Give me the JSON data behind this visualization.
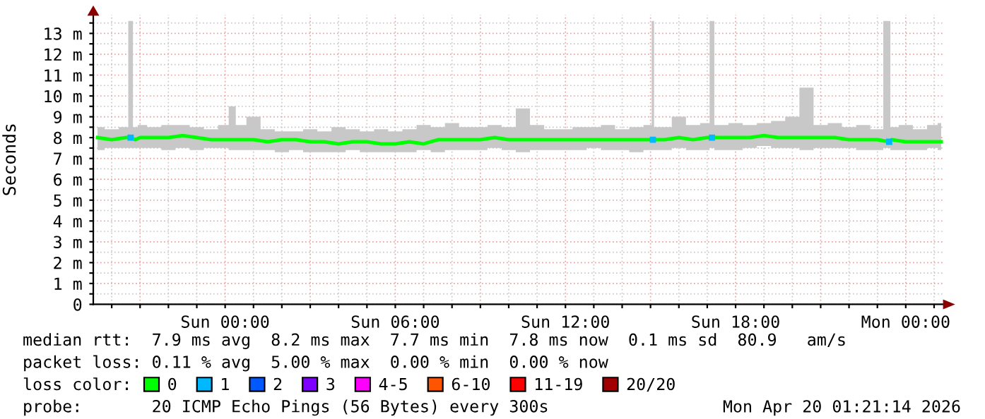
{
  "chart_data": {
    "type": "line",
    "ylabel": "Seconds",
    "legend_title": "loss color:",
    "legend": "bottom",
    "grid": true,
    "xlim": [
      "2026-04-18T19:21",
      "2026-04-20T01:21"
    ],
    "xticks": [
      {
        "value": "2026-04-18T20:00",
        "label": null
      },
      {
        "value": "2026-04-18T21:00",
        "label": null
      },
      {
        "value": "2026-04-18T22:00",
        "label": null
      },
      {
        "value": "2026-04-18T23:00",
        "label": null
      },
      {
        "value": "2026-04-19T00:00",
        "label": "Sun 00:00"
      },
      {
        "value": "2026-04-19T01:00",
        "label": null
      },
      {
        "value": "2026-04-19T02:00",
        "label": null
      },
      {
        "value": "2026-04-19T03:00",
        "label": null
      },
      {
        "value": "2026-04-19T04:00",
        "label": null
      },
      {
        "value": "2026-04-19T05:00",
        "label": null
      },
      {
        "value": "2026-04-19T06:00",
        "label": "Sun 06:00"
      },
      {
        "value": "2026-04-19T07:00",
        "label": null
      },
      {
        "value": "2026-04-19T08:00",
        "label": null
      },
      {
        "value": "2026-04-19T09:00",
        "label": null
      },
      {
        "value": "2026-04-19T10:00",
        "label": null
      },
      {
        "value": "2026-04-19T11:00",
        "label": null
      },
      {
        "value": "2026-04-19T12:00",
        "label": "Sun 12:00"
      },
      {
        "value": "2026-04-19T13:00",
        "label": null
      },
      {
        "value": "2026-04-19T14:00",
        "label": null
      },
      {
        "value": "2026-04-19T15:00",
        "label": null
      },
      {
        "value": "2026-04-19T16:00",
        "label": null
      },
      {
        "value": "2026-04-19T17:00",
        "label": null
      },
      {
        "value": "2026-04-19T18:00",
        "label": "Sun 18:00"
      },
      {
        "value": "2026-04-19T19:00",
        "label": null
      },
      {
        "value": "2026-04-19T20:00",
        "label": null
      },
      {
        "value": "2026-04-19T21:00",
        "label": null
      },
      {
        "value": "2026-04-19T22:00",
        "label": null
      },
      {
        "value": "2026-04-19T23:00",
        "label": null
      },
      {
        "value": "2026-04-20T00:00",
        "label": "Mon 00:00"
      },
      {
        "value": "2026-04-20T01:00",
        "label": null
      }
    ],
    "ylim": [
      0,
      13.9
    ],
    "yticks": [
      {
        "value": 0,
        "label": "0"
      },
      {
        "value": 0.5,
        "label": null
      },
      {
        "value": 1,
        "label": "1 m"
      },
      {
        "value": 1.5,
        "label": null
      },
      {
        "value": 2,
        "label": "2 m"
      },
      {
        "value": 2.5,
        "label": null
      },
      {
        "value": 3,
        "label": "3 m"
      },
      {
        "value": 3.5,
        "label": null
      },
      {
        "value": 4,
        "label": "4 m"
      },
      {
        "value": 4.5,
        "label": null
      },
      {
        "value": 5,
        "label": "5 m"
      },
      {
        "value": 5.5,
        "label": null
      },
      {
        "value": 6,
        "label": "6 m"
      },
      {
        "value": 6.5,
        "label": null
      },
      {
        "value": 7,
        "label": "7 m"
      },
      {
        "value": 7.5,
        "label": null
      },
      {
        "value": 8,
        "label": "8 m"
      },
      {
        "value": 8.5,
        "label": null
      },
      {
        "value": 9,
        "label": "9 m"
      },
      {
        "value": 9.5,
        "label": null
      },
      {
        "value": 10,
        "label": "10 m"
      },
      {
        "value": 10.5,
        "label": null
      },
      {
        "value": 11,
        "label": "11 m"
      },
      {
        "value": 11.5,
        "label": null
      },
      {
        "value": 12,
        "label": "12 m"
      },
      {
        "value": 12.5,
        "label": null
      },
      {
        "value": 13,
        "label": "13 m"
      },
      {
        "value": 13.5,
        "label": null
      }
    ],
    "x": [
      "2026-04-18T19:30",
      "2026-04-18T20:00",
      "2026-04-18T20:30",
      "2026-04-18T20:40",
      "2026-04-18T20:50",
      "2026-04-18T21:00",
      "2026-04-18T21:30",
      "2026-04-18T22:00",
      "2026-04-18T22:30",
      "2026-04-18T23:00",
      "2026-04-18T23:30",
      "2026-04-19T00:00",
      "2026-04-19T00:15",
      "2026-04-19T00:30",
      "2026-04-19T01:00",
      "2026-04-19T01:30",
      "2026-04-19T02:00",
      "2026-04-19T02:30",
      "2026-04-19T03:00",
      "2026-04-19T03:30",
      "2026-04-19T04:00",
      "2026-04-19T04:30",
      "2026-04-19T05:00",
      "2026-04-19T05:30",
      "2026-04-19T06:00",
      "2026-04-19T06:30",
      "2026-04-19T07:00",
      "2026-04-19T07:30",
      "2026-04-19T08:00",
      "2026-04-19T08:30",
      "2026-04-19T09:00",
      "2026-04-19T09:30",
      "2026-04-19T10:00",
      "2026-04-19T10:30",
      "2026-04-19T11:00",
      "2026-04-19T11:30",
      "2026-04-19T12:00",
      "2026-04-19T12:30",
      "2026-04-19T13:00",
      "2026-04-19T13:30",
      "2026-04-19T14:00",
      "2026-04-19T14:30",
      "2026-04-19T15:00",
      "2026-04-19T15:05",
      "2026-04-19T15:10",
      "2026-04-19T15:30",
      "2026-04-19T16:00",
      "2026-04-19T16:30",
      "2026-04-19T17:00",
      "2026-04-19T17:10",
      "2026-04-19T17:20",
      "2026-04-19T17:30",
      "2026-04-19T18:00",
      "2026-04-19T18:30",
      "2026-04-19T19:00",
      "2026-04-19T19:30",
      "2026-04-19T20:00",
      "2026-04-19T20:30",
      "2026-04-19T21:00",
      "2026-04-19T21:30",
      "2026-04-19T22:00",
      "2026-04-19T22:30",
      "2026-04-19T23:00",
      "2026-04-19T23:25",
      "2026-04-19T23:30",
      "2026-04-20T00:00",
      "2026-04-20T00:30",
      "2026-04-20T01:00",
      "2026-04-20T01:15"
    ],
    "series": [
      {
        "name": "0",
        "color": "#00ff00",
        "values": [
          8.0,
          7.9,
          8.0,
          8.0,
          7.9,
          8.0,
          8.0,
          8.0,
          8.1,
          8.0,
          7.9,
          7.9,
          7.9,
          7.9,
          7.9,
          7.8,
          7.9,
          7.9,
          7.8,
          7.8,
          7.7,
          7.8,
          7.8,
          7.7,
          7.7,
          7.8,
          7.7,
          7.9,
          7.9,
          7.9,
          7.9,
          8.0,
          7.9,
          7.9,
          7.9,
          7.9,
          7.9,
          7.9,
          7.9,
          7.9,
          7.9,
          7.9,
          7.9,
          7.9,
          7.9,
          7.9,
          8.0,
          7.9,
          8.0,
          8.0,
          8.0,
          8.0,
          8.0,
          8.0,
          8.1,
          8.0,
          8.0,
          8.0,
          8.0,
          8.0,
          7.9,
          7.9,
          7.9,
          7.8,
          7.9,
          7.8,
          7.8,
          7.8,
          7.8
        ],
        "lower": [
          7.4,
          7.5,
          7.5,
          7.5,
          7.5,
          7.5,
          7.5,
          7.4,
          7.5,
          7.4,
          7.5,
          7.5,
          7.4,
          7.4,
          7.4,
          7.4,
          7.3,
          7.4,
          7.3,
          7.3,
          7.3,
          7.4,
          7.3,
          7.3,
          7.3,
          7.3,
          7.4,
          7.3,
          7.4,
          7.4,
          7.4,
          7.5,
          7.4,
          7.3,
          7.4,
          7.4,
          7.4,
          7.4,
          7.5,
          7.4,
          7.4,
          7.3,
          7.4,
          7.4,
          7.4,
          7.4,
          7.5,
          7.4,
          7.4,
          7.5,
          7.4,
          7.4,
          7.4,
          7.5,
          7.6,
          7.5,
          7.5,
          7.4,
          7.5,
          7.5,
          7.5,
          7.4,
          7.4,
          7.5,
          7.4,
          7.4,
          7.4,
          7.5,
          7.4
        ],
        "upper": [
          8.5,
          8.4,
          8.5,
          13.6,
          8.5,
          8.6,
          8.5,
          8.6,
          8.6,
          8.5,
          8.4,
          8.6,
          9.5,
          8.6,
          9.0,
          8.4,
          8.3,
          8.3,
          8.4,
          8.3,
          8.5,
          8.4,
          8.3,
          8.4,
          8.3,
          8.4,
          8.6,
          8.5,
          8.7,
          8.5,
          8.5,
          8.6,
          8.5,
          9.4,
          8.6,
          8.4,
          8.4,
          8.5,
          8.5,
          8.6,
          8.4,
          8.5,
          8.6,
          13.6,
          8.5,
          8.5,
          9.0,
          8.6,
          8.7,
          13.6,
          8.6,
          8.6,
          8.7,
          8.6,
          8.7,
          8.8,
          9.0,
          10.4,
          8.6,
          8.7,
          8.5,
          8.6,
          8.4,
          13.6,
          8.5,
          8.6,
          8.4,
          8.6,
          8.7
        ]
      },
      {
        "name": "1",
        "color": "#00b8ff",
        "type": "scatter",
        "marker": "square",
        "values": [
          null,
          null,
          null,
          8.0,
          null,
          null,
          null,
          null,
          null,
          null,
          null,
          null,
          null,
          null,
          null,
          null,
          null,
          null,
          null,
          null,
          null,
          null,
          null,
          null,
          null,
          null,
          null,
          null,
          null,
          null,
          null,
          null,
          null,
          null,
          null,
          null,
          null,
          null,
          null,
          null,
          null,
          null,
          null,
          7.9,
          null,
          null,
          null,
          null,
          null,
          8.0,
          null,
          null,
          null,
          null,
          null,
          null,
          null,
          null,
          null,
          null,
          null,
          null,
          null,
          7.8,
          null,
          null,
          null,
          null,
          null
        ]
      },
      {
        "name": "2",
        "color": "#0059ff",
        "values": [
          null,
          null,
          null,
          null,
          null,
          null,
          null,
          null,
          null,
          null,
          null,
          null,
          null,
          null,
          null,
          null,
          null,
          null,
          null,
          null,
          null,
          null,
          null,
          null,
          null,
          null,
          null,
          null,
          null,
          null,
          null,
          null,
          null,
          null,
          null,
          null,
          null,
          null,
          null,
          null,
          null,
          null,
          null,
          null,
          null,
          null,
          null,
          null,
          null,
          null,
          null,
          null,
          null,
          null,
          null,
          null,
          null,
          null,
          null,
          null,
          null,
          null,
          null,
          null,
          null,
          null,
          null,
          null,
          null
        ]
      },
      {
        "name": "3",
        "color": "#7e00ff",
        "values": [
          null,
          null,
          null,
          null,
          null,
          null,
          null,
          null,
          null,
          null,
          null,
          null,
          null,
          null,
          null,
          null,
          null,
          null,
          null,
          null,
          null,
          null,
          null,
          null,
          null,
          null,
          null,
          null,
          null,
          null,
          null,
          null,
          null,
          null,
          null,
          null,
          null,
          null,
          null,
          null,
          null,
          null,
          null,
          null,
          null,
          null,
          null,
          null,
          null,
          null,
          null,
          null,
          null,
          null,
          null,
          null,
          null,
          null,
          null,
          null,
          null,
          null,
          null,
          null,
          null,
          null,
          null,
          null,
          null
        ]
      },
      {
        "name": "4-5",
        "color": "#ff00ff",
        "values": [
          null,
          null,
          null,
          null,
          null,
          null,
          null,
          null,
          null,
          null,
          null,
          null,
          null,
          null,
          null,
          null,
          null,
          null,
          null,
          null,
          null,
          null,
          null,
          null,
          null,
          null,
          null,
          null,
          null,
          null,
          null,
          null,
          null,
          null,
          null,
          null,
          null,
          null,
          null,
          null,
          null,
          null,
          null,
          null,
          null,
          null,
          null,
          null,
          null,
          null,
          null,
          null,
          null,
          null,
          null,
          null,
          null,
          null,
          null,
          null,
          null,
          null,
          null,
          null,
          null,
          null,
          null,
          null,
          null
        ]
      },
      {
        "name": "6-10",
        "color": "#ff5500",
        "values": [
          null,
          null,
          null,
          null,
          null,
          null,
          null,
          null,
          null,
          null,
          null,
          null,
          null,
          null,
          null,
          null,
          null,
          null,
          null,
          null,
          null,
          null,
          null,
          null,
          null,
          null,
          null,
          null,
          null,
          null,
          null,
          null,
          null,
          null,
          null,
          null,
          null,
          null,
          null,
          null,
          null,
          null,
          null,
          null,
          null,
          null,
          null,
          null,
          null,
          null,
          null,
          null,
          null,
          null,
          null,
          null,
          null,
          null,
          null,
          null,
          null,
          null,
          null,
          null,
          null,
          null,
          null,
          null,
          null
        ]
      },
      {
        "name": "11-19",
        "color": "#ff0000",
        "values": [
          null,
          null,
          null,
          null,
          null,
          null,
          null,
          null,
          null,
          null,
          null,
          null,
          null,
          null,
          null,
          null,
          null,
          null,
          null,
          null,
          null,
          null,
          null,
          null,
          null,
          null,
          null,
          null,
          null,
          null,
          null,
          null,
          null,
          null,
          null,
          null,
          null,
          null,
          null,
          null,
          null,
          null,
          null,
          null,
          null,
          null,
          null,
          null,
          null,
          null,
          null,
          null,
          null,
          null,
          null,
          null,
          null,
          null,
          null,
          null,
          null,
          null,
          null,
          null,
          null,
          null,
          null,
          null,
          null
        ]
      },
      {
        "name": "20/20",
        "color": "#a10000",
        "values": [
          null,
          null,
          null,
          null,
          null,
          null,
          null,
          null,
          null,
          null,
          null,
          null,
          null,
          null,
          null,
          null,
          null,
          null,
          null,
          null,
          null,
          null,
          null,
          null,
          null,
          null,
          null,
          null,
          null,
          null,
          null,
          null,
          null,
          null,
          null,
          null,
          null,
          null,
          null,
          null,
          null,
          null,
          null,
          null,
          null,
          null,
          null,
          null,
          null,
          null,
          null,
          null,
          null,
          null,
          null,
          null,
          null,
          null,
          null,
          null,
          null,
          null,
          null,
          null,
          null,
          null,
          null,
          null,
          null
        ]
      }
    ],
    "annotations": [
      "median rtt:  7.9 ms avg  8.2 ms max  7.7 ms min  7.8 ms now  0.1 ms sd  80.9   am/s",
      "packet loss: 0.11 % avg  5.00 % max  0.00 % min  0.00 % now",
      "probe:       20 ICMP Echo Pings (56 Bytes) every 300s",
      "Mon Apr 20 01:21:14 2026"
    ]
  }
}
